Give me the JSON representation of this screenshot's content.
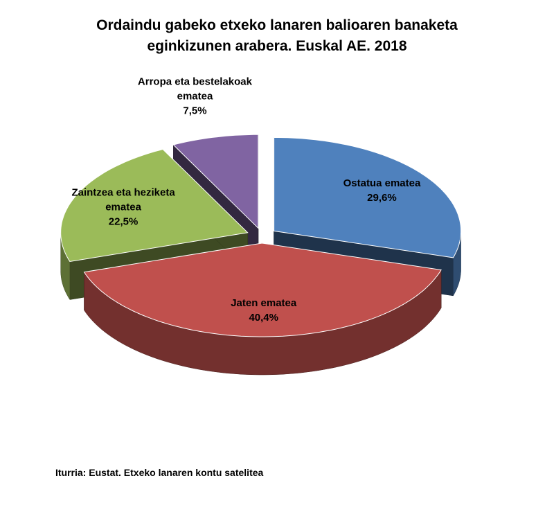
{
  "chart_data": {
    "type": "pie3d",
    "title": "Ordaindu gabeko etxeko lanaren balioaren banaketa eginkizunen arabera. Euskal AE. 2018",
    "categories": [
      "Ostatua ematea",
      "Jaten ematea",
      "Zaintzea eta heziketa ematea",
      "Arropa eta bestelakoak ematea"
    ],
    "values": [
      29.6,
      40.4,
      22.5,
      7.5
    ],
    "value_labels": [
      "29,6%",
      "40,4%",
      "22,5%",
      "7,5%"
    ],
    "colors": [
      "#4f81bd",
      "#c0504d",
      "#9bbb59",
      "#8064a2"
    ],
    "source": "Iturria: Eustat. Etxeko lanaren kontu satelitea"
  }
}
